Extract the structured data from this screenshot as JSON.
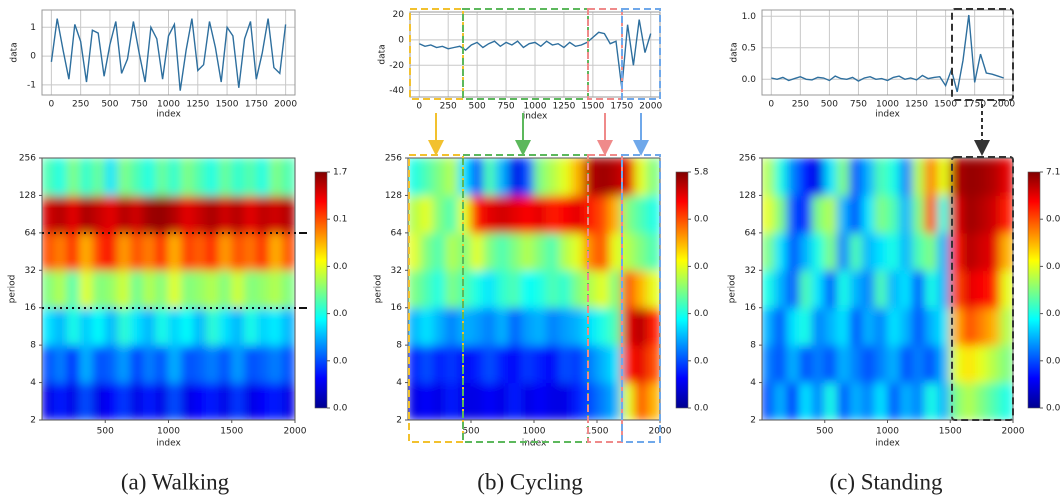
{
  "chart_data": [
    {
      "type": "line",
      "xlabel": "index",
      "ylabel": "data",
      "color": "#2e6f9e",
      "grid": true,
      "xlim": [
        -80,
        2080
      ],
      "xticks": [
        0,
        250,
        500,
        750,
        1000,
        1250,
        1500,
        1750,
        2000
      ],
      "ylim": [
        -1.35,
        1.6
      ],
      "yticks": [
        -1,
        0,
        1
      ],
      "x": [
        0,
        50,
        100,
        150,
        200,
        250,
        300,
        350,
        400,
        450,
        500,
        550,
        600,
        650,
        700,
        750,
        800,
        850,
        900,
        950,
        1000,
        1050,
        1100,
        1150,
        1200,
        1250,
        1300,
        1350,
        1400,
        1450,
        1500,
        1550,
        1600,
        1650,
        1700,
        1750,
        1800,
        1850,
        1900,
        1950,
        2000
      ],
      "values": [
        -0.2,
        1.3,
        0.2,
        -0.8,
        1.1,
        0.5,
        -0.9,
        0.9,
        0.8,
        -0.7,
        0.4,
        1.2,
        -0.6,
        -0.1,
        1.2,
        0.1,
        -0.9,
        1.0,
        0.6,
        -0.8,
        0.7,
        1.1,
        -1.2,
        0.2,
        1.3,
        -0.5,
        -0.3,
        1.2,
        0.3,
        -0.9,
        1.0,
        0.7,
        -1.1,
        0.6,
        1.2,
        -0.8,
        0.1,
        1.3,
        -0.4,
        -0.6,
        1.1
      ]
    },
    {
      "type": "line",
      "xlabel": "index",
      "ylabel": "data",
      "color": "#2e6f9e",
      "grid": true,
      "xlim": [
        -80,
        2080
      ],
      "xticks": [
        0,
        250,
        500,
        750,
        1000,
        1250,
        1500,
        1750,
        2000
      ],
      "ylim": [
        -45,
        22
      ],
      "yticks": [
        -40,
        -20,
        0,
        20
      ],
      "x": [
        0,
        50,
        100,
        150,
        200,
        250,
        300,
        350,
        400,
        450,
        500,
        550,
        600,
        650,
        700,
        750,
        800,
        850,
        900,
        950,
        1000,
        1050,
        1100,
        1150,
        1200,
        1250,
        1300,
        1350,
        1400,
        1450,
        1500,
        1550,
        1600,
        1650,
        1700,
        1750,
        1800,
        1850,
        1900,
        1950,
        2000
      ],
      "values": [
        -3,
        -5,
        -4,
        -6,
        -5,
        -7,
        -6,
        -5,
        -8,
        -4,
        -2,
        -6,
        -3,
        -1,
        -5,
        -2,
        -4,
        -1,
        -6,
        -3,
        -2,
        -5,
        -1,
        -4,
        -3,
        -6,
        -2,
        -5,
        -4,
        -2,
        2,
        6,
        5,
        -3,
        -1,
        -38,
        12,
        -20,
        16,
        -10,
        5
      ]
    },
    {
      "type": "line",
      "xlabel": "index",
      "ylabel": "data",
      "color": "#2e6f9e",
      "grid": true,
      "xlim": [
        -80,
        2080
      ],
      "xticks": [
        0,
        250,
        500,
        750,
        1000,
        1250,
        1500,
        1750,
        2000
      ],
      "ylim": [
        -0.25,
        1.1
      ],
      "yticks": [
        {
          "value": 0,
          "label": "0.0"
        },
        {
          "value": 0.5,
          "label": "0.5"
        },
        {
          "value": 1,
          "label": "1.0"
        }
      ],
      "x": [
        0,
        50,
        100,
        150,
        200,
        250,
        300,
        350,
        400,
        450,
        500,
        550,
        600,
        650,
        700,
        750,
        800,
        850,
        900,
        950,
        1000,
        1050,
        1100,
        1150,
        1200,
        1250,
        1300,
        1350,
        1400,
        1450,
        1500,
        1550,
        1600,
        1650,
        1700,
        1750,
        1800,
        1850,
        1900,
        1950,
        2000
      ],
      "values": [
        0.02,
        0.0,
        0.03,
        -0.02,
        0.01,
        0.04,
        0.0,
        -0.01,
        0.03,
        0.02,
        -0.02,
        0.05,
        0.01,
        0.0,
        0.03,
        -0.03,
        0.02,
        0.04,
        0.0,
        0.01,
        -0.02,
        0.03,
        0.05,
        0.0,
        0.02,
        -0.01,
        0.06,
        0.01,
        0.03,
        0.04,
        -0.1,
        0.15,
        -0.2,
        0.3,
        1.02,
        -0.05,
        0.4,
        0.1,
        0.08,
        0.05,
        0.02
      ]
    },
    {
      "type": "heatmap",
      "xlabel": "index",
      "ylabel": "period",
      "yscale": "log",
      "xlim": [
        0,
        2000
      ],
      "xticks": [
        500,
        1000,
        1500,
        2000
      ],
      "ylim": [
        2,
        256
      ],
      "yticks": [
        2,
        4,
        8,
        16,
        32,
        64,
        128,
        256
      ],
      "zlim": [
        0,
        1
      ],
      "colorbar_labels": [
        "1.7",
        "0.1",
        "0.0",
        "0.0",
        "0.0",
        "0.0"
      ],
      "z": [
        [
          0.1,
          0.15,
          0.1,
          0.2,
          0.1,
          0.12,
          0.18,
          0.1,
          0.15,
          0.1,
          0.2,
          0.1,
          0.12,
          0.15,
          0.1,
          0.18,
          0.1,
          0.12,
          0.15,
          0.1
        ],
        [
          0.2,
          0.25,
          0.15,
          0.3,
          0.2,
          0.22,
          0.28,
          0.18,
          0.25,
          0.2,
          0.3,
          0.2,
          0.22,
          0.25,
          0.2,
          0.28,
          0.2,
          0.22,
          0.25,
          0.2
        ],
        [
          0.35,
          0.3,
          0.4,
          0.32,
          0.38,
          0.3,
          0.42,
          0.35,
          0.3,
          0.4,
          0.33,
          0.38,
          0.3,
          0.42,
          0.35,
          0.3,
          0.4,
          0.33,
          0.36,
          0.3
        ],
        [
          0.5,
          0.55,
          0.45,
          0.6,
          0.5,
          0.52,
          0.58,
          0.48,
          0.55,
          0.5,
          0.6,
          0.5,
          0.52,
          0.55,
          0.5,
          0.58,
          0.5,
          0.52,
          0.55,
          0.5
        ],
        [
          0.8,
          0.75,
          0.85,
          0.7,
          0.82,
          0.88,
          0.72,
          0.8,
          0.75,
          0.85,
          0.7,
          0.82,
          0.78,
          0.85,
          0.72,
          0.8,
          0.76,
          0.84,
          0.7,
          0.8
        ],
        [
          0.92,
          0.95,
          0.9,
          0.96,
          0.93,
          0.9,
          0.95,
          0.92,
          0.97,
          0.98,
          0.95,
          0.9,
          0.93,
          0.96,
          0.92,
          0.95,
          0.9,
          0.94,
          0.92,
          0.95
        ],
        [
          0.45,
          0.4,
          0.5,
          0.42,
          0.48,
          0.35,
          0.5,
          0.45,
          0.4,
          0.48,
          0.42,
          0.5,
          0.45,
          0.4,
          0.48,
          0.42,
          0.46,
          0.4,
          0.5,
          0.45
        ]
      ]
    },
    {
      "type": "heatmap",
      "xlabel": "index",
      "ylabel": "period",
      "yscale": "log",
      "xlim": [
        0,
        2000
      ],
      "xticks": [
        500,
        1000,
        1500,
        2000
      ],
      "ylim": [
        2,
        256
      ],
      "yticks": [
        2,
        4,
        8,
        16,
        32,
        64,
        128,
        256
      ],
      "zlim": [
        0,
        1
      ],
      "colorbar_labels": [
        "5.8",
        "0.0",
        "0.0",
        "0.0",
        "0.0",
        "0.0"
      ],
      "z": [
        [
          0.1,
          0.12,
          0.1,
          0.15,
          0.1,
          0.1,
          0.12,
          0.1,
          0.15,
          0.1,
          0.12,
          0.1,
          0.1,
          0.15,
          0.2,
          0.25,
          0.3,
          0.6,
          0.8,
          0.7
        ],
        [
          0.15,
          0.2,
          0.15,
          0.18,
          0.12,
          0.15,
          0.2,
          0.15,
          0.12,
          0.18,
          0.15,
          0.12,
          0.2,
          0.18,
          0.25,
          0.3,
          0.35,
          0.85,
          0.9,
          0.8
        ],
        [
          0.3,
          0.35,
          0.3,
          0.25,
          0.3,
          0.28,
          0.25,
          0.3,
          0.22,
          0.28,
          0.3,
          0.25,
          0.28,
          0.3,
          0.35,
          0.4,
          0.45,
          0.9,
          0.95,
          0.85
        ],
        [
          0.5,
          0.45,
          0.4,
          0.5,
          0.45,
          0.4,
          0.35,
          0.42,
          0.45,
          0.38,
          0.4,
          0.45,
          0.42,
          0.5,
          0.55,
          0.6,
          0.5,
          0.8,
          0.7,
          0.6
        ],
        [
          0.6,
          0.5,
          0.45,
          0.55,
          0.5,
          0.6,
          0.5,
          0.45,
          0.5,
          0.55,
          0.5,
          0.45,
          0.55,
          0.6,
          0.75,
          0.8,
          0.6,
          0.55,
          0.5,
          0.45
        ],
        [
          0.55,
          0.6,
          0.5,
          0.45,
          0.6,
          0.85,
          0.9,
          0.92,
          0.9,
          0.88,
          0.9,
          0.85,
          0.88,
          0.9,
          0.85,
          0.8,
          0.7,
          0.5,
          0.45,
          0.4
        ],
        [
          0.4,
          0.45,
          0.5,
          0.55,
          0.35,
          0.2,
          0.45,
          0.3,
          0.1,
          0.2,
          0.5,
          0.55,
          0.6,
          0.7,
          0.95,
          0.97,
          0.95,
          0.9,
          0.6,
          0.5
        ]
      ]
    },
    {
      "type": "heatmap",
      "xlabel": "index",
      "ylabel": "period",
      "yscale": "log",
      "xlim": [
        0,
        2000
      ],
      "xticks": [
        500,
        1000,
        1500,
        2000
      ],
      "ylim": [
        2,
        256
      ],
      "yticks": [
        2,
        4,
        8,
        16,
        32,
        64,
        128,
        256
      ],
      "zlim": [
        0,
        1
      ],
      "colorbar_labels": [
        "7.1",
        "0.0",
        "0.0",
        "0.0",
        "0.0",
        "0.0"
      ],
      "z": [
        [
          0.2,
          0.3,
          0.15,
          0.35,
          0.25,
          0.4,
          0.2,
          0.3,
          0.25,
          0.35,
          0.2,
          0.3,
          0.25,
          0.4,
          0.3,
          0.5,
          0.55,
          0.5,
          0.45,
          0.4
        ],
        [
          0.25,
          0.2,
          0.3,
          0.2,
          0.25,
          0.2,
          0.3,
          0.25,
          0.2,
          0.25,
          0.3,
          0.2,
          0.25,
          0.2,
          0.3,
          0.6,
          0.65,
          0.6,
          0.55,
          0.5
        ],
        [
          0.3,
          0.2,
          0.35,
          0.4,
          0.25,
          0.3,
          0.35,
          0.2,
          0.3,
          0.25,
          0.35,
          0.3,
          0.2,
          0.3,
          0.35,
          0.7,
          0.8,
          0.75,
          0.7,
          0.55
        ],
        [
          0.4,
          0.3,
          0.2,
          0.45,
          0.35,
          0.2,
          0.4,
          0.3,
          0.25,
          0.45,
          0.3,
          0.35,
          0.2,
          0.4,
          0.3,
          0.8,
          0.9,
          0.88,
          0.85,
          0.6
        ],
        [
          0.5,
          0.35,
          0.2,
          0.3,
          0.4,
          0.5,
          0.25,
          0.45,
          0.3,
          0.35,
          0.4,
          0.3,
          0.45,
          0.5,
          0.3,
          0.85,
          0.95,
          0.92,
          0.9,
          0.7
        ],
        [
          0.6,
          0.5,
          0.2,
          0.15,
          0.5,
          0.55,
          0.3,
          0.2,
          0.35,
          0.5,
          0.45,
          0.3,
          0.5,
          0.8,
          0.4,
          0.9,
          0.97,
          0.95,
          0.92,
          0.85
        ],
        [
          0.55,
          0.4,
          0.25,
          0.15,
          0.1,
          0.35,
          0.5,
          0.2,
          0.3,
          0.45,
          0.4,
          0.25,
          0.55,
          0.75,
          0.6,
          0.95,
          0.98,
          0.97,
          0.95,
          0.9
        ]
      ]
    }
  ],
  "captions": [
    "(a)  Walking",
    "(b)  Cycling",
    "(c)  Standing"
  ]
}
